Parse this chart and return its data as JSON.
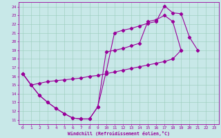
{
  "xlabel": "Windchill (Refroidissement éolien,°C)",
  "xlim": [
    -0.5,
    23.5
  ],
  "ylim": [
    10.5,
    24.5
  ],
  "xticks": [
    0,
    1,
    2,
    3,
    4,
    5,
    6,
    7,
    8,
    9,
    10,
    11,
    12,
    13,
    14,
    15,
    16,
    17,
    18,
    19,
    20,
    21,
    22,
    23
  ],
  "yticks": [
    11,
    12,
    13,
    14,
    15,
    16,
    17,
    18,
    19,
    20,
    21,
    22,
    23,
    24
  ],
  "bg_color": "#c8e8e8",
  "line_color": "#990099",
  "grid_color": "#99ccbb",
  "line1_x": [
    0,
    1,
    2,
    3,
    4,
    5,
    6,
    7,
    8,
    9,
    10,
    11,
    12,
    13,
    14,
    15,
    16,
    17,
    18,
    19,
    20,
    21
  ],
  "line1_y": [
    16.3,
    15.0,
    13.8,
    13.0,
    12.3,
    11.7,
    11.2,
    11.1,
    11.1,
    12.5,
    16.5,
    21.0,
    21.3,
    21.5,
    21.8,
    22.1,
    22.3,
    24.1,
    23.3,
    23.2,
    20.5,
    19.0
  ],
  "line2_x": [
    0,
    1,
    2,
    3,
    4,
    5,
    6,
    7,
    8,
    9,
    10,
    11,
    12,
    13,
    14,
    15,
    16,
    17,
    18,
    19
  ],
  "line2_y": [
    16.3,
    15.0,
    13.8,
    13.0,
    12.3,
    11.7,
    11.2,
    11.1,
    11.1,
    12.5,
    18.8,
    19.0,
    19.2,
    19.5,
    19.8,
    22.3,
    22.5,
    23.0,
    22.3,
    19.0
  ],
  "line3_x": [
    0,
    1,
    2,
    3,
    4,
    5,
    6,
    7,
    8,
    9,
    10,
    11,
    12,
    13,
    14,
    15,
    16,
    17,
    18,
    19
  ],
  "line3_y": [
    16.3,
    15.0,
    15.2,
    15.4,
    15.5,
    15.6,
    15.7,
    15.8,
    16.0,
    16.1,
    16.3,
    16.5,
    16.7,
    16.9,
    17.1,
    17.3,
    17.5,
    17.7,
    18.0,
    19.0
  ]
}
